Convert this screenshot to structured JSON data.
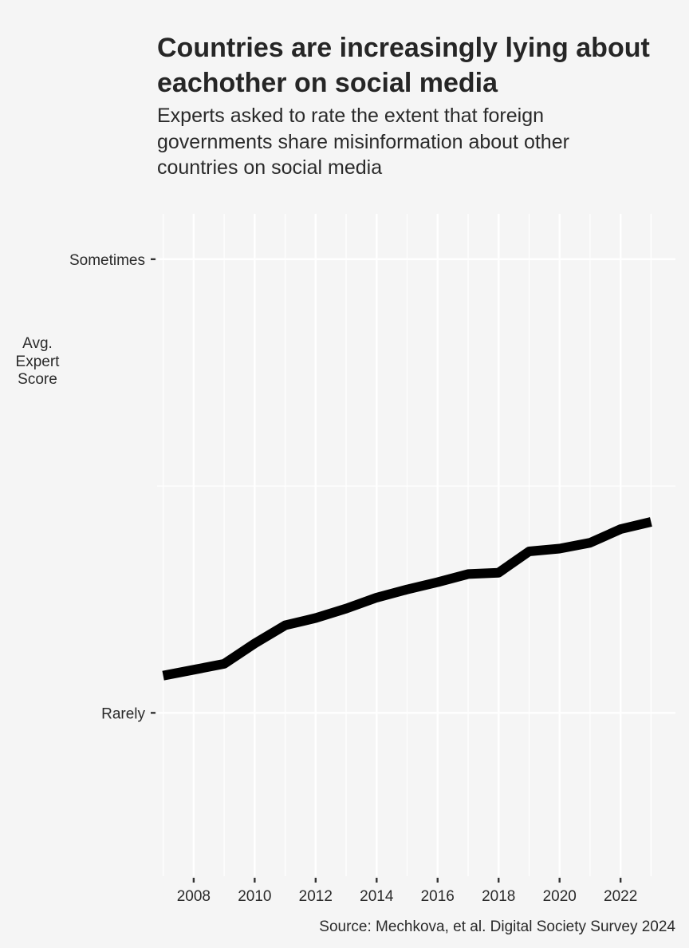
{
  "chart_data": {
    "type": "line",
    "title": "Countries are increasingly lying about eachother on social media",
    "subtitle": "Experts asked to rate the extent that foreign governments share misinformation about other countries on social media",
    "ylabel": "Avg. Expert Score",
    "xlabel": "",
    "source": "Source: Mechkova, et al. Digital Society Survey 2024",
    "xlim": [
      2006.8,
      2023.8
    ],
    "ylim": [
      -0.36,
      1.1
    ],
    "x_ticks": [
      2008,
      2010,
      2012,
      2014,
      2016,
      2018,
      2020,
      2022
    ],
    "x_tick_labels": [
      "2008",
      "2010",
      "2012",
      "2014",
      "2016",
      "2018",
      "2020",
      "2022"
    ],
    "y_ticks": [
      0,
      1
    ],
    "y_tick_labels": [
      "Rarely",
      "Sometimes"
    ],
    "y_minor_gridlines": [
      0.5
    ],
    "grid": true,
    "legend": "none",
    "line_color": "#000000",
    "series": [
      {
        "x": [
          2007,
          2008,
          2009,
          2010,
          2011,
          2012,
          2013,
          2014,
          2015,
          2016,
          2017,
          2018,
          2019,
          2020,
          2021,
          2022,
          2023
        ],
        "values": [
          0.082,
          0.095,
          0.108,
          0.153,
          0.193,
          0.209,
          0.23,
          0.254,
          0.272,
          0.288,
          0.306,
          0.309,
          0.356,
          0.362,
          0.375,
          0.405,
          0.421
        ]
      }
    ]
  }
}
